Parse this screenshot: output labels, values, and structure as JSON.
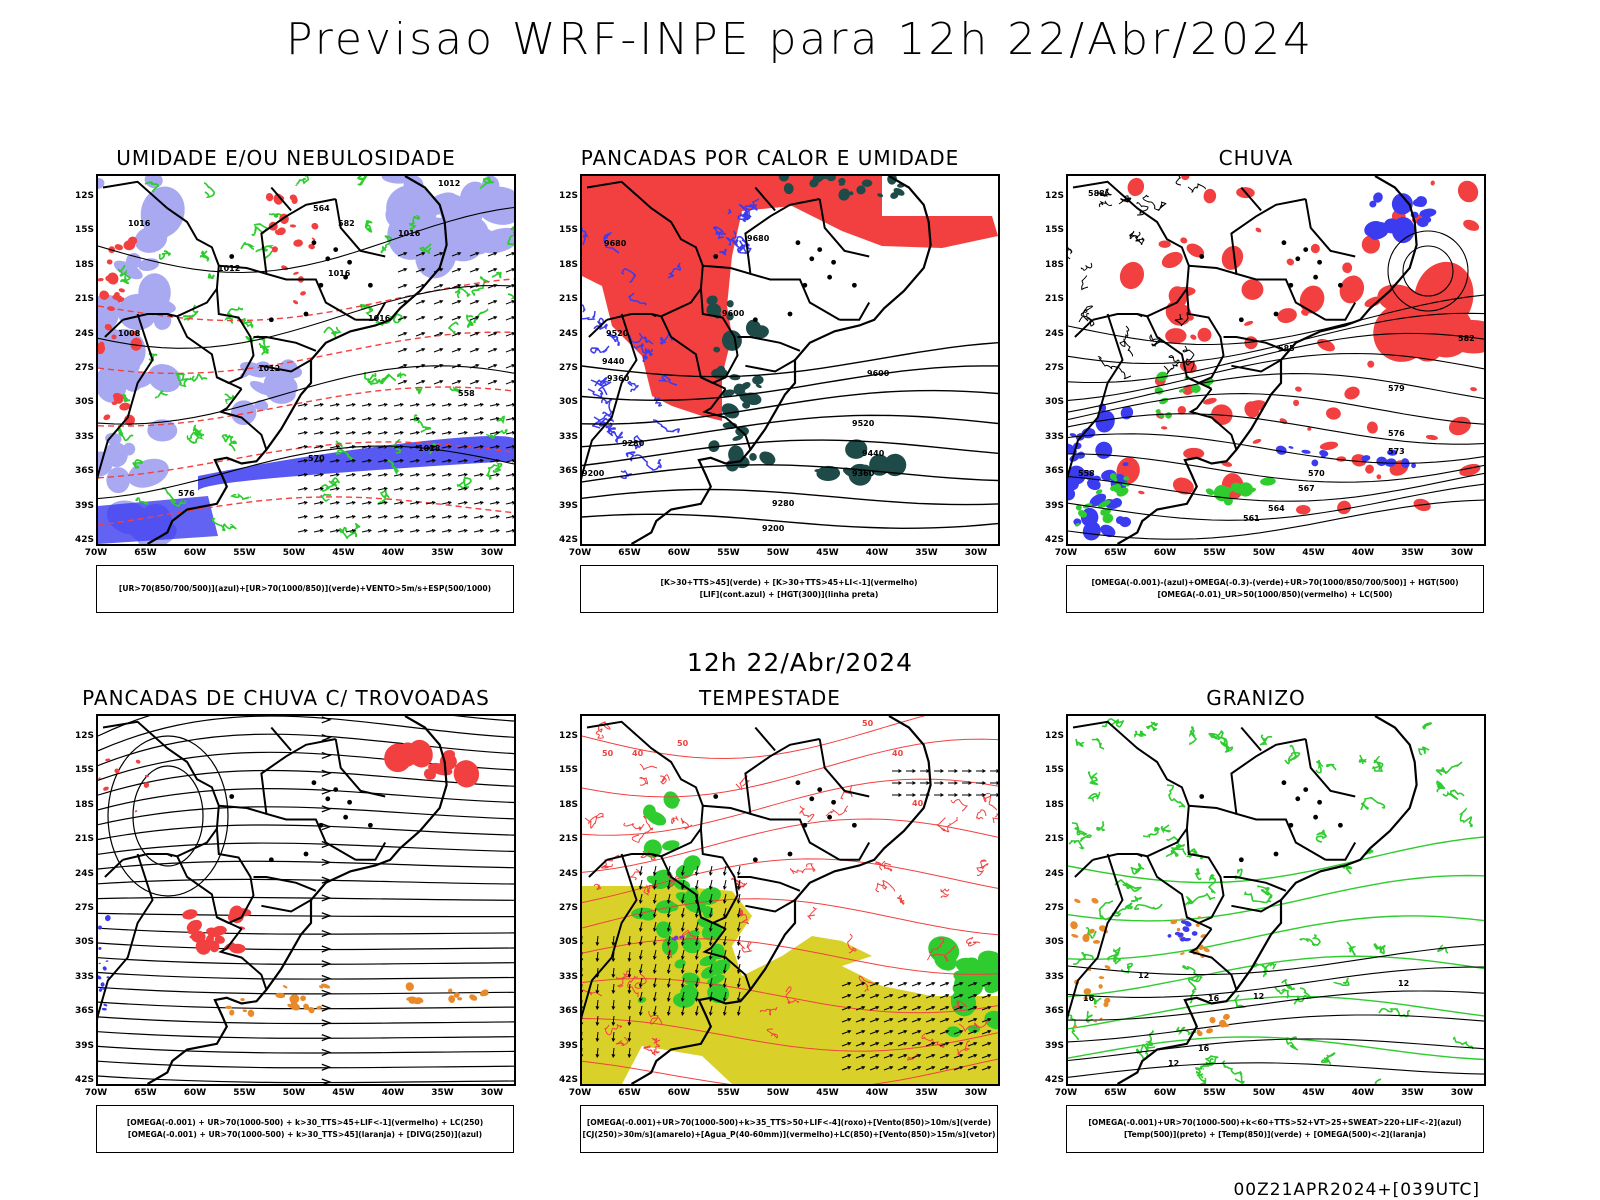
{
  "title": "Previsao WRF-INPE  para 12h 22/Abr/2024",
  "subtitle": "12h 22/Abr/2024",
  "footer": "00Z21APR2024+[039UTC]",
  "lat_labels": [
    "12S",
    "15S",
    "18S",
    "21S",
    "24S",
    "27S",
    "30S",
    "33S",
    "36S",
    "39S",
    "42S"
  ],
  "lon_labels": [
    "70W",
    "65W",
    "60W",
    "55W",
    "50W",
    "45W",
    "40W",
    "35W",
    "30W"
  ],
  "colors": {
    "red": "#f24040",
    "green": "#2ecc2e",
    "blue": "#3b3bf0",
    "lightblue": "#a9a9f2",
    "teal": "#1e4a48",
    "yellow": "#d9d12a",
    "orange": "#e8892a",
    "black": "#000000"
  },
  "panels": [
    {
      "id": "umidade",
      "title": "UMIDADE E/OU NEBULOSIDADE",
      "legend": [
        "[UR>70(850/700/500)](azul)+[UR>70(1000/850)](verde)+VENTO>5m/s+ESP(500/1000)"
      ],
      "contour_labels": [
        "1012",
        "1016",
        "1012",
        "1016",
        "1016",
        "1008",
        "1012",
        "1016",
        "1018",
        "570",
        "576",
        "582",
        "564",
        "558"
      ]
    },
    {
      "id": "pancadas-calor",
      "title": "PANCADAS POR CALOR E UMIDADE",
      "legend": [
        "[K>30+TTS>45](verde) + [K>30+TTS>45+LI<-1](vermelho)",
        "[LIF](cont.azul) + [HGT(300)](linha preta)"
      ],
      "contour_labels": [
        "9680",
        "9680",
        "9600",
        "9520",
        "9440",
        "9360",
        "9280",
        "9200",
        "9600",
        "9520",
        "9440",
        "9360",
        "9280",
        "9200"
      ]
    },
    {
      "id": "chuva",
      "title": "CHUVA",
      "legend": [
        "[OMEGA(-0.001)-(azul)+OMEGA(-0.3)-(verde)+UR>70(1000/850/700/500)] + HGT(500)",
        "[OMEGA(-0.01)_UR>50(1000/850)(vermelho) + LC(500)"
      ],
      "contour_labels": [
        "588",
        "585",
        "582",
        "579",
        "576",
        "573",
        "570",
        "567",
        "564",
        "561",
        "558"
      ]
    },
    {
      "id": "pancadas-trovoadas",
      "title": "PANCADAS DE CHUVA C/ TROVOADAS",
      "legend": [
        "[OMEGA(-0.001) + UR>70(1000-500) + k>30_TTS>45+LIF<-1](vermelho) + LC(250)",
        "[OMEGA(-0.001) + UR>70(1000-500) + k>30_TTS>45](laranja) + [DIVG(250)](azul)"
      ],
      "contour_labels": []
    },
    {
      "id": "tempestade",
      "title": "TEMPESTADE",
      "legend": [
        "[OMEGA(-0.001)+UR>70(1000-500)+k>35_TTS>50+LIF<-4](roxo)+[Vento(850)>10m/s](verde)",
        "[CJ(250)>30m/s](amarelo)+[Agua_P(40-60mm)](vermelho)+LC(850)+[Vento(850)>15m/s](vetor)"
      ],
      "contour_labels": [
        "50",
        "50",
        "50",
        "40",
        "40",
        "40"
      ]
    },
    {
      "id": "granizo",
      "title": "GRANIZO",
      "legend": [
        "[OMEGA(-0.001)+UR>70(1000-500)+k<60+TTS>52+VT>25+SWEAT>220+LIF<-2](azul)",
        "[Temp(500)](preto) + [Temp(850)](verde) + [OMEGA(500)<-2](laranja)"
      ],
      "contour_labels": [
        "12",
        "12",
        "12",
        "12",
        "16",
        "16",
        "16"
      ]
    }
  ]
}
